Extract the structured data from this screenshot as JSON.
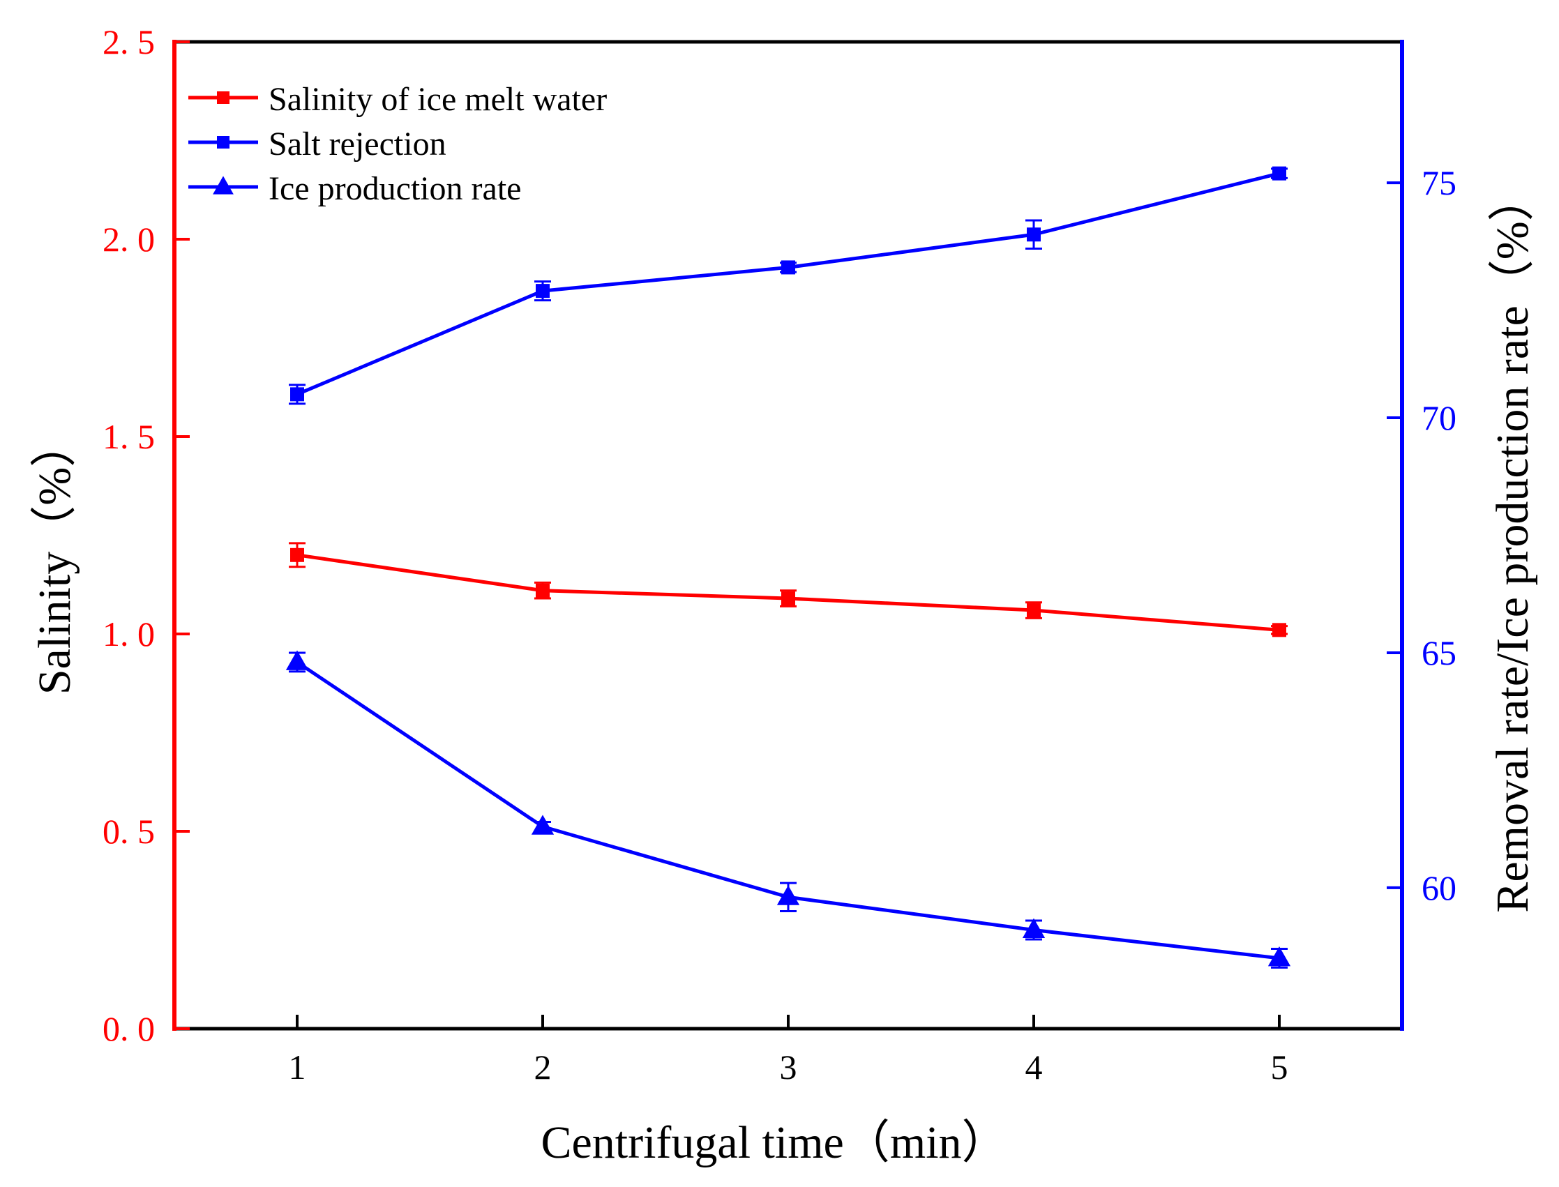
{
  "colors": {
    "left_axis": "#ff0000",
    "right_axis": "#0000ff",
    "frame": "#000000",
    "salinity_series": "#ff0000",
    "rejection_series": "#0000ff",
    "ice_series": "#0000ff"
  },
  "chart_data": {
    "type": "line",
    "xlabel": "Centrifugal time（min）",
    "ylabel_left": "Salinity（%）",
    "ylabel_right": "Removal rate/Ice production rate（%）",
    "x": [
      1,
      2,
      3,
      4,
      5
    ],
    "x_tick_labels": [
      "1",
      "2",
      "3",
      "4",
      "5"
    ],
    "xlim": [
      0.5,
      5.5
    ],
    "ylim_left": [
      0,
      2.5
    ],
    "ylim_right": [
      57,
      78
    ],
    "y_left_ticks": [
      0,
      0.5,
      1.0,
      1.5,
      2.0,
      2.5
    ],
    "y_left_tick_labels": [
      "0. 0",
      "0. 5",
      "1. 0",
      "1. 5",
      "2. 0",
      "2. 5"
    ],
    "y_right_ticks": [
      60,
      65,
      70,
      75
    ],
    "y_right_tick_labels": [
      "60",
      "65",
      "70",
      "75"
    ],
    "legend_position": "top-left",
    "series": [
      {
        "name": "Salinity of ice melt water",
        "axis": "left",
        "marker": "square",
        "color": "#ff0000",
        "values": [
          1.2,
          1.11,
          1.09,
          1.06,
          1.01
        ],
        "errors": [
          0.03,
          0.02,
          0.02,
          0.02,
          0.01
        ]
      },
      {
        "name": "Salt rejection",
        "axis": "right",
        "marker": "square",
        "color": "#0000ff",
        "values": [
          70.5,
          72.7,
          73.2,
          73.9,
          75.2
        ],
        "errors": [
          0.2,
          0.2,
          0.1,
          0.3,
          0.1
        ]
      },
      {
        "name": "Ice production rate",
        "axis": "right",
        "marker": "triangle",
        "color": "#0000ff",
        "values": [
          64.8,
          61.3,
          59.8,
          59.1,
          58.5
        ],
        "errors": [
          0.2,
          0.1,
          0.3,
          0.2,
          0.2
        ]
      }
    ]
  }
}
